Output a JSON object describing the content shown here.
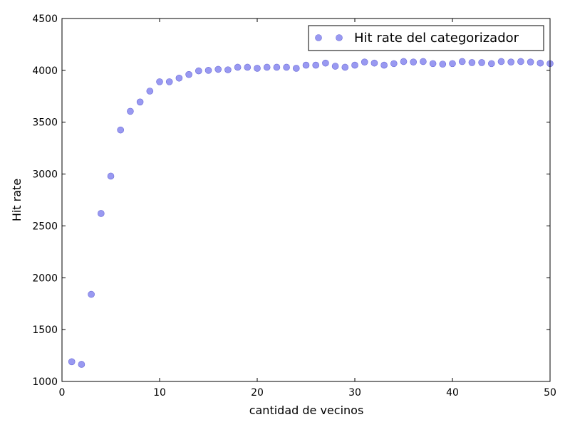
{
  "chart_data": {
    "type": "scatter",
    "xlabel": "cantidad de vecinos",
    "ylabel": "Hit rate",
    "xlim": [
      0,
      50
    ],
    "ylim": [
      1000,
      4500
    ],
    "xticks": [
      0,
      10,
      20,
      30,
      40,
      50
    ],
    "yticks": [
      1000,
      1500,
      2000,
      2500,
      3000,
      3500,
      4000,
      4500
    ],
    "grid": false,
    "legend_position": "top-right",
    "series": [
      {
        "name": "Hit rate del categorizador",
        "color": "#8080ee",
        "x": [
          1,
          2,
          3,
          4,
          5,
          6,
          7,
          8,
          9,
          10,
          11,
          12,
          13,
          14,
          15,
          16,
          17,
          18,
          19,
          20,
          21,
          22,
          23,
          24,
          25,
          26,
          27,
          28,
          29,
          30,
          31,
          32,
          33,
          34,
          35,
          36,
          37,
          38,
          39,
          40,
          41,
          42,
          43,
          44,
          45,
          46,
          47,
          48,
          49,
          50
        ],
        "y": [
          1190,
          1165,
          1840,
          2620,
          2980,
          3425,
          3605,
          3695,
          3800,
          3890,
          3890,
          3925,
          3960,
          3995,
          4000,
          4010,
          4005,
          4030,
          4030,
          4020,
          4030,
          4030,
          4030,
          4020,
          4050,
          4050,
          4070,
          4040,
          4030,
          4050,
          4080,
          4070,
          4050,
          4065,
          4085,
          4080,
          4085,
          4065,
          4060,
          4065,
          4085,
          4075,
          4075,
          4065,
          4085,
          4080,
          4085,
          4080,
          4070,
          4065
        ]
      }
    ]
  }
}
